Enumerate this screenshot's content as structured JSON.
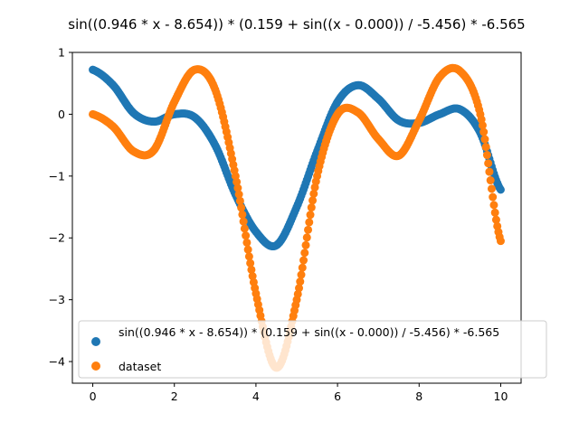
{
  "chart_data": {
    "type": "scatter",
    "title": "sin((0.946 * x - 8.654)) * (0.159 + sin((x - 0.000)) / -5.456) * -6.565",
    "xlabel": "",
    "ylabel": "",
    "xlim": [
      -0.5,
      10.5
    ],
    "ylim": [
      -4.35,
      1.0
    ],
    "xticks": [
      0,
      2,
      4,
      6,
      8,
      10
    ],
    "yticks": [
      1,
      0,
      -1,
      -2,
      -3,
      -4
    ],
    "grid": false,
    "legend_position": "lower-right",
    "x_range": [
      0,
      10
    ],
    "series": [
      {
        "name": "sin((0.946 * x - 8.654)) * (0.159 + sin((x - 0.000)) / -5.456) * -6.565",
        "color": "#1f77b4",
        "x": [
          0,
          0.5,
          1,
          1.5,
          2,
          2.5,
          3,
          3.5,
          4,
          4.5,
          5,
          5.5,
          6,
          6.5,
          7,
          7.5,
          8,
          8.5,
          9,
          9.5,
          10
        ],
        "y": [
          0.72,
          0.47,
          0.02,
          -0.12,
          0.0,
          -0.05,
          -0.5,
          -1.3,
          -1.9,
          -2.12,
          -1.5,
          -0.6,
          0.2,
          0.47,
          0.25,
          -0.1,
          -0.14,
          0.0,
          0.08,
          -0.3,
          -1.22
        ]
      },
      {
        "name": "dataset",
        "color": "#ff7f0e",
        "x": [
          0,
          0.5,
          1,
          1.5,
          2,
          2.5,
          3,
          3.5,
          4,
          4.5,
          5,
          5.5,
          6,
          6.5,
          7,
          7.5,
          8,
          8.5,
          9,
          9.5,
          10
        ],
        "y": [
          0.0,
          -0.2,
          -0.6,
          -0.58,
          0.2,
          0.72,
          0.4,
          -1.0,
          -2.9,
          -4.1,
          -3.0,
          -1.0,
          0.0,
          0.03,
          -0.4,
          -0.67,
          -0.1,
          0.6,
          0.7,
          0.0,
          -2.05
        ]
      }
    ]
  }
}
